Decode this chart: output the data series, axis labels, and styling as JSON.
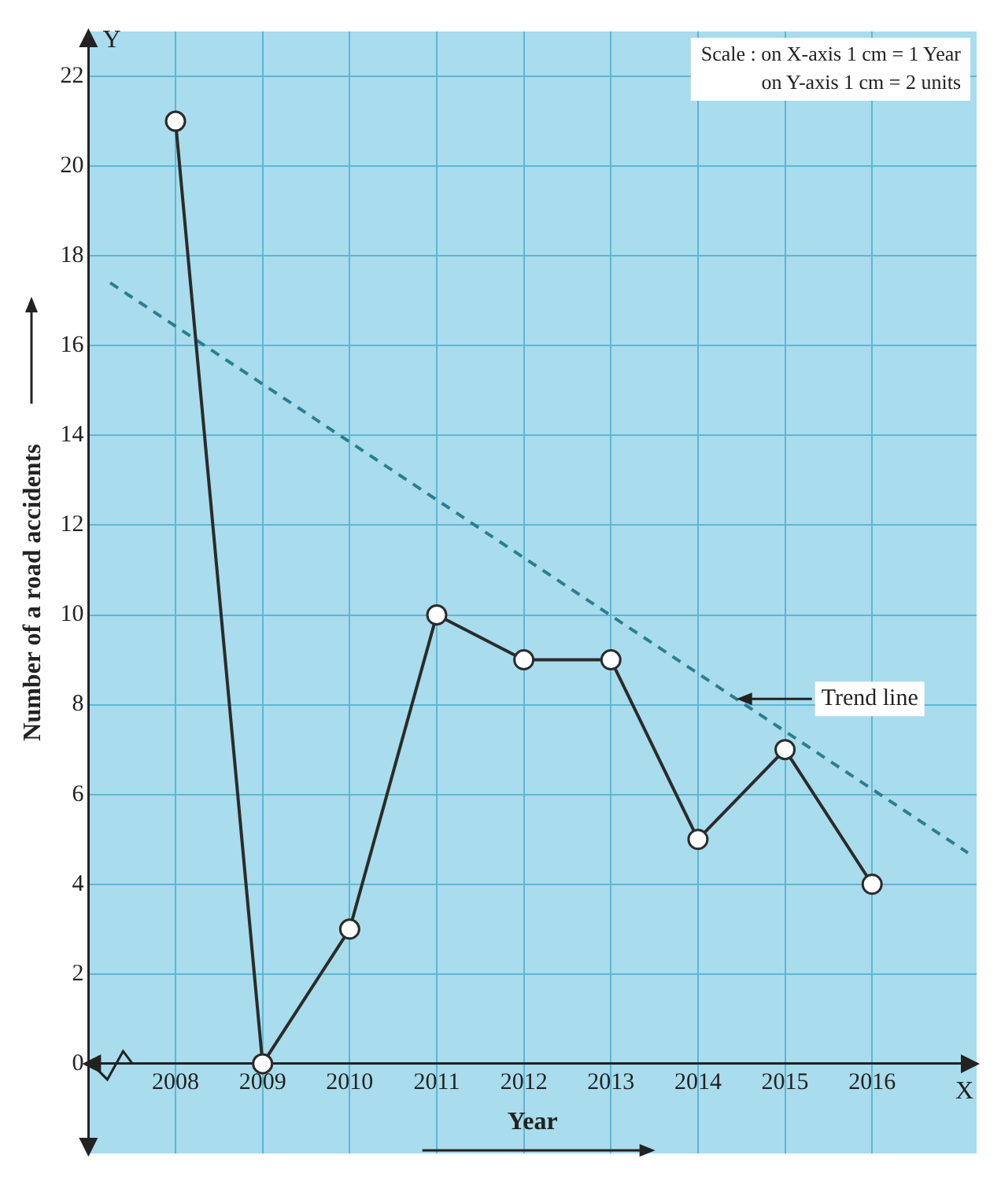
{
  "chart_data": {
    "type": "line",
    "xlabel": "Year",
    "ylabel": "Number of a road accidents",
    "x": [
      2008,
      2009,
      2010,
      2011,
      2012,
      2013,
      2014,
      2015,
      2016
    ],
    "series": [
      {
        "color": "#2b2b2b",
        "values": [
          21,
          0,
          3,
          10,
          9,
          9,
          5,
          7,
          4
        ],
        "marker": "circle",
        "line_style": "solid"
      },
      {
        "name": "Trend line",
        "type": "line",
        "color": "#2a7f8f",
        "x": [
          2007.25,
          2017.1
        ],
        "values": [
          17.4,
          4.7
        ],
        "marker": "none",
        "line_style": "dashed"
      }
    ],
    "xlim": [
      2007,
      2017.2
    ],
    "xticks": [
      2008,
      2009,
      2010,
      2011,
      2012,
      2013,
      2014,
      2015,
      2016
    ],
    "ylim": [
      -2,
      23
    ],
    "yticks": [
      0,
      2,
      4,
      6,
      8,
      10,
      12,
      14,
      16,
      18,
      20,
      22
    ],
    "grid": true,
    "legend": false,
    "annotations": [
      "Scale : on X-axis 1 cm = 1 Year",
      "on Y-axis 1 cm = 2 units",
      "Y",
      "X"
    ]
  }
}
